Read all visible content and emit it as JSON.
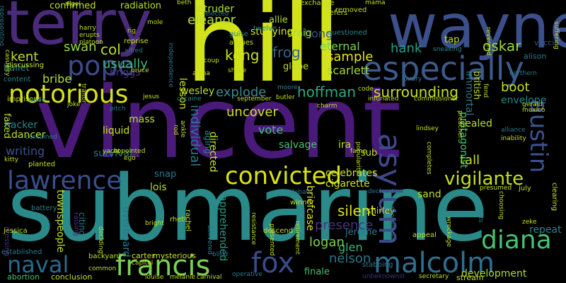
{
  "cloud": {
    "words": [
      {
        "text": "vincent",
        "color": "#4a1a7a"
      },
      {
        "text": "submarine",
        "color": "#2a8a8a"
      },
      {
        "text": "hill",
        "color": "#d2e21b"
      },
      {
        "text": "wayne",
        "color": "#3b4f8a"
      },
      {
        "text": "terry",
        "color": "#4a2a7a"
      },
      {
        "text": "especially",
        "color": "#3b5a8c"
      },
      {
        "text": "notorious",
        "color": "#d8e219"
      },
      {
        "text": "pope",
        "color": "#3b4a8a"
      },
      {
        "text": "convicted",
        "color": "#d8e219"
      },
      {
        "text": "lawrence",
        "color": "#3a4e8c"
      },
      {
        "text": "malcolm",
        "color": "#2e6e8e"
      },
      {
        "text": "francis",
        "color": "#7ad151"
      },
      {
        "text": "naval",
        "color": "#2a6a8a"
      },
      {
        "text": "fox",
        "color": "#3a4a8a"
      },
      {
        "text": "diana",
        "color": "#48c16e"
      },
      {
        "text": "asylum",
        "color": "#3e4989"
      },
      {
        "text": "austin",
        "color": "#3b528b"
      },
      {
        "text": "vigilante",
        "color": "#c2df23"
      },
      {
        "text": "eleanor",
        "color": "#b5de2b"
      },
      {
        "text": "kong",
        "color": "#c8e020"
      },
      {
        "text": "frog",
        "color": "#33638d"
      },
      {
        "text": "hoffman",
        "color": "#27ad81"
      },
      {
        "text": "surrounding",
        "color": "#c8e020"
      },
      {
        "text": "explode",
        "color": "#3a8a8c"
      },
      {
        "text": "hank",
        "color": "#1fa187"
      },
      {
        "text": "sample",
        "color": "#e5e419"
      },
      {
        "text": "oskar",
        "color": "#9fda3a"
      },
      {
        "text": "boot",
        "color": "#c2df23"
      },
      {
        "text": "col",
        "color": "#b8de29"
      },
      {
        "text": "usually",
        "color": "#37b878"
      },
      {
        "text": "scarlett",
        "color": "#a2da37"
      },
      {
        "text": "uncover",
        "color": "#d2e21b"
      },
      {
        "text": "individual",
        "color": "#2a788e"
      },
      {
        "text": "silent",
        "color": "#dde318"
      },
      {
        "text": "presence",
        "color": "#46327e"
      },
      {
        "text": "nelson",
        "color": "#2a788e"
      },
      {
        "text": "glen",
        "color": "#35b779"
      },
      {
        "text": "logan",
        "color": "#7ad151"
      },
      {
        "text": "kent",
        "color": "#bddf26"
      },
      {
        "text": "swan",
        "color": "#90d743"
      },
      {
        "text": "intruder",
        "color": "#b5de2b"
      },
      {
        "text": "hong",
        "color": "#3b528b"
      },
      {
        "text": "eternal",
        "color": "#7ad151"
      },
      {
        "text": "wesley",
        "color": "#bddf26"
      },
      {
        "text": "lesson",
        "color": "#c8e020"
      },
      {
        "text": "mass",
        "color": "#bddf26"
      },
      {
        "text": "liquid",
        "color": "#c8e020"
      },
      {
        "text": "writing",
        "color": "#3b528b"
      },
      {
        "text": "vote",
        "color": "#44bf70"
      },
      {
        "text": "tall",
        "color": "#c2df23"
      },
      {
        "text": "sealed",
        "color": "#bddf26"
      },
      {
        "text": "lois",
        "color": "#b5de2b"
      },
      {
        "text": "survival",
        "color": "#2a788e"
      },
      {
        "text": "immortal",
        "color": "#2a788e"
      },
      {
        "text": "cigarette",
        "color": "#c8e020"
      },
      {
        "text": "briefcase",
        "color": "#e5e419"
      },
      {
        "text": "jerome",
        "color": "#2a788e"
      },
      {
        "text": "repeat",
        "color": "#25858e"
      },
      {
        "text": "development",
        "color": "#aadc32"
      },
      {
        "text": "townspeople",
        "color": "#c2df23"
      },
      {
        "text": "apprehended",
        "color": "#1f9e89"
      },
      {
        "text": "overboard",
        "color": "#2a788e"
      },
      {
        "text": "celebrates",
        "color": "#c8e020"
      },
      {
        "text": "ballet",
        "color": "#25838e"
      },
      {
        "text": "bribe",
        "color": "#b5de2b"
      },
      {
        "text": "hacker",
        "color": "#25848e"
      },
      {
        "text": "dancer",
        "color": "#bddf26"
      },
      {
        "text": "briggs",
        "color": "#46327e"
      },
      {
        "text": "sand",
        "color": "#c2df23"
      },
      {
        "text": "protagonist",
        "color": "#4ac16d"
      },
      {
        "text": "vaccine",
        "color": "#3b528b"
      },
      {
        "text": "envelope",
        "color": "#25858e"
      },
      {
        "text": "alison",
        "color": "#2a788e"
      },
      {
        "text": "craig",
        "color": "#a5db36"
      },
      {
        "text": "globe",
        "color": "#bddf26"
      },
      {
        "text": "studying",
        "color": "#d2e21b"
      },
      {
        "text": "allie",
        "color": "#b8de29"
      },
      {
        "text": "confirmed",
        "color": "#c2df23"
      },
      {
        "text": "radiation",
        "color": "#bddf26"
      },
      {
        "text": "ira",
        "color": "#b8de29"
      },
      {
        "text": "salvage",
        "color": "#4ac16d"
      },
      {
        "text": "sub",
        "color": "#c2df23"
      },
      {
        "text": "tap",
        "color": "#c2df23"
      },
      {
        "text": "british",
        "color": "#c2df23"
      },
      {
        "text": "shirley",
        "color": "#c2df23"
      },
      {
        "text": "snap",
        "color": "#2a788e"
      },
      {
        "text": "directed",
        "color": "#c8e020"
      },
      {
        "text": "aging",
        "color": "#25848e"
      },
      {
        "text": "stabbing",
        "color": "#2a788e"
      },
      {
        "text": "finale",
        "color": "#4ac16d"
      },
      {
        "text": "stream",
        "color": "#c2df23"
      },
      {
        "text": "carter",
        "color": "#c8e020"
      },
      {
        "text": "mysterious",
        "color": "#c8e020"
      },
      {
        "text": "faked",
        "color": "#b5de2b"
      },
      {
        "text": "citing",
        "color": "#2a788e"
      },
      {
        "text": "winner",
        "color": "#c2df23"
      },
      {
        "text": "removed",
        "color": "#c2df23"
      },
      {
        "text": "exchange",
        "color": "#c2df23"
      },
      {
        "text": "elected",
        "color": "#2a788e"
      },
      {
        "text": "refers",
        "color": "#c2df23"
      },
      {
        "text": "questioned",
        "color": "#25858e"
      },
      {
        "text": "argues",
        "color": "#c2df23"
      },
      {
        "text": "guise",
        "color": "#25858e"
      },
      {
        "text": "twelve",
        "color": "#25858e"
      },
      {
        "text": "jessica",
        "color": "#c2df23"
      },
      {
        "text": "abortion",
        "color": "#4ac16d"
      },
      {
        "text": "conclusion",
        "color": "#c2df23"
      },
      {
        "text": "established",
        "color": "#2a788e"
      },
      {
        "text": "battery",
        "color": "#25858e"
      },
      {
        "text": "backyard",
        "color": "#b5de2b"
      },
      {
        "text": "discussing",
        "color": "#c8e020"
      },
      {
        "text": "content",
        "color": "#25858e"
      },
      {
        "text": "imprisons",
        "color": "#c2df23"
      },
      {
        "text": "harry",
        "color": "#c2df23"
      },
      {
        "text": "erupts",
        "color": "#c2df23"
      },
      {
        "text": "platoon",
        "color": "#c2df23"
      },
      {
        "text": "rig",
        "color": "#c2df23"
      },
      {
        "text": "reprise",
        "color": "#c2df23"
      },
      {
        "text": "alfred",
        "color": "#2a788e"
      },
      {
        "text": "mole",
        "color": "#c2df23"
      },
      {
        "text": "nigel",
        "color": "#c2df23"
      },
      {
        "text": "beth",
        "color": "#c2df23"
      },
      {
        "text": "mama",
        "color": "#c2df23"
      },
      {
        "text": "alpha",
        "color": "#c2df23"
      },
      {
        "text": "shake",
        "color": "#c2df23"
      },
      {
        "text": "coup",
        "color": "#c2df23"
      },
      {
        "text": "code",
        "color": "#c2df23"
      },
      {
        "text": "luxury",
        "color": "#2a788e"
      },
      {
        "text": "northern",
        "color": "#2a788e"
      },
      {
        "text": "reverend",
        "color": "#c2df23"
      },
      {
        "text": "sneaking",
        "color": "#25858e"
      },
      {
        "text": "moore",
        "color": "#25858e"
      },
      {
        "text": "butler",
        "color": "#c2df23"
      },
      {
        "text": "september",
        "color": "#c2df23"
      },
      {
        "text": "charm",
        "color": "#c2df23"
      },
      {
        "text": "infuriated",
        "color": "#c2df23"
      },
      {
        "text": "commissioner",
        "color": "#c2df23"
      },
      {
        "text": "jesus",
        "color": "#c2df23"
      },
      {
        "text": "cocaine",
        "color": "#25858e"
      },
      {
        "text": "bruce",
        "color": "#c2df23"
      },
      {
        "text": "joke",
        "color": "#c2df23"
      },
      {
        "text": "pitch",
        "color": "#2a788e"
      },
      {
        "text": "wade",
        "color": "#2a788e"
      },
      {
        "text": "rhett",
        "color": "#c2df23"
      },
      {
        "text": "bright",
        "color": "#c2df23"
      },
      {
        "text": "rachel",
        "color": "#c2df23"
      },
      {
        "text": "descend",
        "color": "#c2df23"
      },
      {
        "text": "declaration",
        "color": "#2a788e"
      },
      {
        "text": "debate",
        "color": "#2a788e"
      },
      {
        "text": "appeal",
        "color": "#c2df23"
      },
      {
        "text": "zeke",
        "color": "#c2df23"
      },
      {
        "text": "july",
        "color": "#c2df23"
      },
      {
        "text": "presumed",
        "color": "#c2df23"
      },
      {
        "text": "fame",
        "color": "#c2df23"
      },
      {
        "text": "lindsey",
        "color": "#c2df23"
      },
      {
        "text": "alliance",
        "color": "#2a788e"
      },
      {
        "text": "mexico",
        "color": "#c2df23"
      },
      {
        "text": "gerald",
        "color": "#c2df23"
      },
      {
        "text": "inability",
        "color": "#c2df23"
      },
      {
        "text": "kitty",
        "color": "#c2df23"
      },
      {
        "text": "yacht",
        "color": "#c2df23"
      },
      {
        "text": "ego",
        "color": "#c2df23"
      },
      {
        "text": "appointed",
        "color": "#c2df23"
      },
      {
        "text": "planted",
        "color": "#c2df23"
      },
      {
        "text": "contained",
        "color": "#25858e"
      },
      {
        "text": "capital",
        "color": "#c2df23"
      },
      {
        "text": "common",
        "color": "#c2df23"
      },
      {
        "text": "louise",
        "color": "#c2df23"
      },
      {
        "text": "melanie",
        "color": "#c2df23"
      },
      {
        "text": "carnival",
        "color": "#c2df23"
      },
      {
        "text": "operative",
        "color": "#2a788e"
      },
      {
        "text": "secretary",
        "color": "#c2df23"
      },
      {
        "text": "unbeknownst",
        "color": "#46327e"
      },
      {
        "text": "blind",
        "color": "#2a788e"
      },
      {
        "text": "ankle",
        "color": "#c2df23"
      },
      {
        "text": "rod",
        "color": "#c2df23"
      },
      {
        "text": "independence",
        "color": "#2a788e"
      },
      {
        "text": "representing",
        "color": "#2a788e"
      },
      {
        "text": "casualty",
        "color": "#c2df23"
      },
      {
        "text": "dressing",
        "color": "#46327e"
      },
      {
        "text": "raising",
        "color": "#46327e"
      },
      {
        "text": "deciding",
        "color": "#c2df23"
      },
      {
        "text": "delivered",
        "color": "#25858e"
      },
      {
        "text": "resistance",
        "color": "#c2df23"
      },
      {
        "text": "retirement",
        "color": "#c2df23"
      },
      {
        "text": "presented",
        "color": "#c2df23"
      },
      {
        "text": "popularity",
        "color": "#c2df23"
      },
      {
        "text": "completes",
        "color": "#c2df23"
      },
      {
        "text": "anonymous",
        "color": "#2a788e"
      },
      {
        "text": "wreckage",
        "color": "#c2df23"
      },
      {
        "text": "choosing",
        "color": "#c2df23"
      },
      {
        "text": "shuts",
        "color": "#25858e"
      },
      {
        "text": "clearing",
        "color": "#c2df23"
      },
      {
        "text": "fend",
        "color": "#c2df23"
      },
      {
        "text": "preacher",
        "color": "#c2df23"
      },
      {
        "text": "traitor",
        "color": "#c2df23"
      },
      {
        "text": "suffering",
        "color": "#c2df23"
      }
    ]
  }
}
